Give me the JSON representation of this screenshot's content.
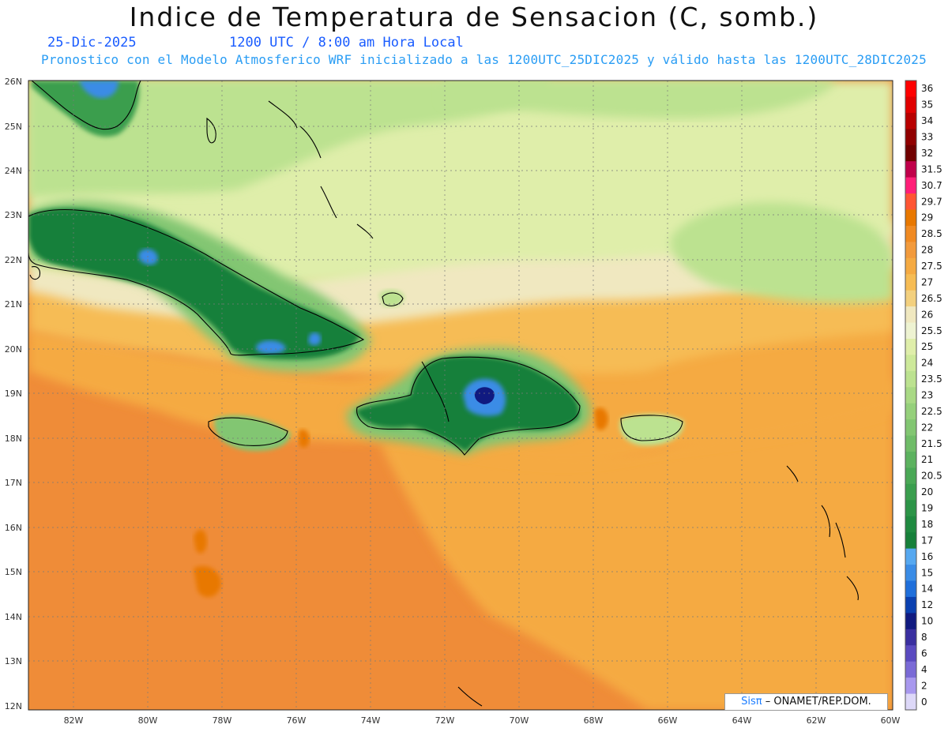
{
  "title": "Indice de Temperatura de Sensacion (C, somb.)",
  "date": "25-Dic-2025",
  "time_label": "1200 UTC / 8:00 am Hora Local",
  "subtitle": "Pronostico con el Modelo Atmosferico WRF inicializado a las 1200UTC_25DIC2025 y válido hasta las  1200UTC_28DIC2025",
  "credit": {
    "brand": "Sisπ",
    "text": "– ONAMET/REP.DOM."
  },
  "latitudes": [
    "26N",
    "25N",
    "24N",
    "23N",
    "22N",
    "21N",
    "20N",
    "19N",
    "18N",
    "17N",
    "16N",
    "15N",
    "14N",
    "13N",
    "12N"
  ],
  "longitudes": [
    "82W",
    "80W",
    "78W",
    "76W",
    "74W",
    "72W",
    "70W",
    "68W",
    "66W",
    "64W",
    "62W",
    "60W"
  ],
  "colorbar": [
    {
      "label": "36",
      "color": "#ff0000"
    },
    {
      "label": "35",
      "color": "#e00000"
    },
    {
      "label": "34",
      "color": "#b80000"
    },
    {
      "label": "33",
      "color": "#900000"
    },
    {
      "label": "32",
      "color": "#700000"
    },
    {
      "label": "31.5",
      "color": "#c0004a"
    },
    {
      "label": "30.7",
      "color": "#ff1e78"
    },
    {
      "label": "29.7",
      "color": "#ff5533"
    },
    {
      "label": "29",
      "color": "#e87800"
    },
    {
      "label": "28.5",
      "color": "#f08a22"
    },
    {
      "label": "28",
      "color": "#f29a3c"
    },
    {
      "label": "27.5",
      "color": "#f5aa42"
    },
    {
      "label": "27",
      "color": "#f6bc54"
    },
    {
      "label": "26.5",
      "color": "#f3d07e"
    },
    {
      "label": "26",
      "color": "#f0e8c0"
    },
    {
      "label": "25.5",
      "color": "#eef3d2"
    },
    {
      "label": "25",
      "color": "#dfeeaa"
    },
    {
      "label": "24",
      "color": "#cde99a"
    },
    {
      "label": "23.5",
      "color": "#bce290"
    },
    {
      "label": "23",
      "color": "#a9d985"
    },
    {
      "label": "22.5",
      "color": "#95d07b"
    },
    {
      "label": "22",
      "color": "#82c672"
    },
    {
      "label": "21.5",
      "color": "#6fbc68"
    },
    {
      "label": "21",
      "color": "#5cb25f"
    },
    {
      "label": "20.5",
      "color": "#4aa856"
    },
    {
      "label": "20",
      "color": "#3a9e4e"
    },
    {
      "label": "19",
      "color": "#2c9447"
    },
    {
      "label": "18",
      "color": "#1f8a40"
    },
    {
      "label": "17",
      "color": "#17803a"
    },
    {
      "label": "16",
      "color": "#56a8f0"
    },
    {
      "label": "15",
      "color": "#3a8ce6"
    },
    {
      "label": "14",
      "color": "#1f6fdb"
    },
    {
      "label": "12",
      "color": "#0a40b0"
    },
    {
      "label": "10",
      "color": "#101a80"
    },
    {
      "label": "8",
      "color": "#3a2fa0"
    },
    {
      "label": "6",
      "color": "#5a4ac0"
    },
    {
      "label": "4",
      "color": "#7a6ad6"
    },
    {
      "label": "2",
      "color": "#a898ee"
    },
    {
      "label": "0",
      "color": "#ddd8f8"
    }
  ],
  "palette": {
    "ocean_orange": "#ef8c38",
    "light_orange": "#f5aa42",
    "yellow": "#f6bc54",
    "cream": "#f0e8c0",
    "pale_green": "#dfeeaa",
    "light_green": "#bce290",
    "mid_green": "#82c672",
    "green": "#3a9e4e",
    "dark_green": "#17803a",
    "blue": "#3a8ce6",
    "deep_blue": "#101a80"
  }
}
